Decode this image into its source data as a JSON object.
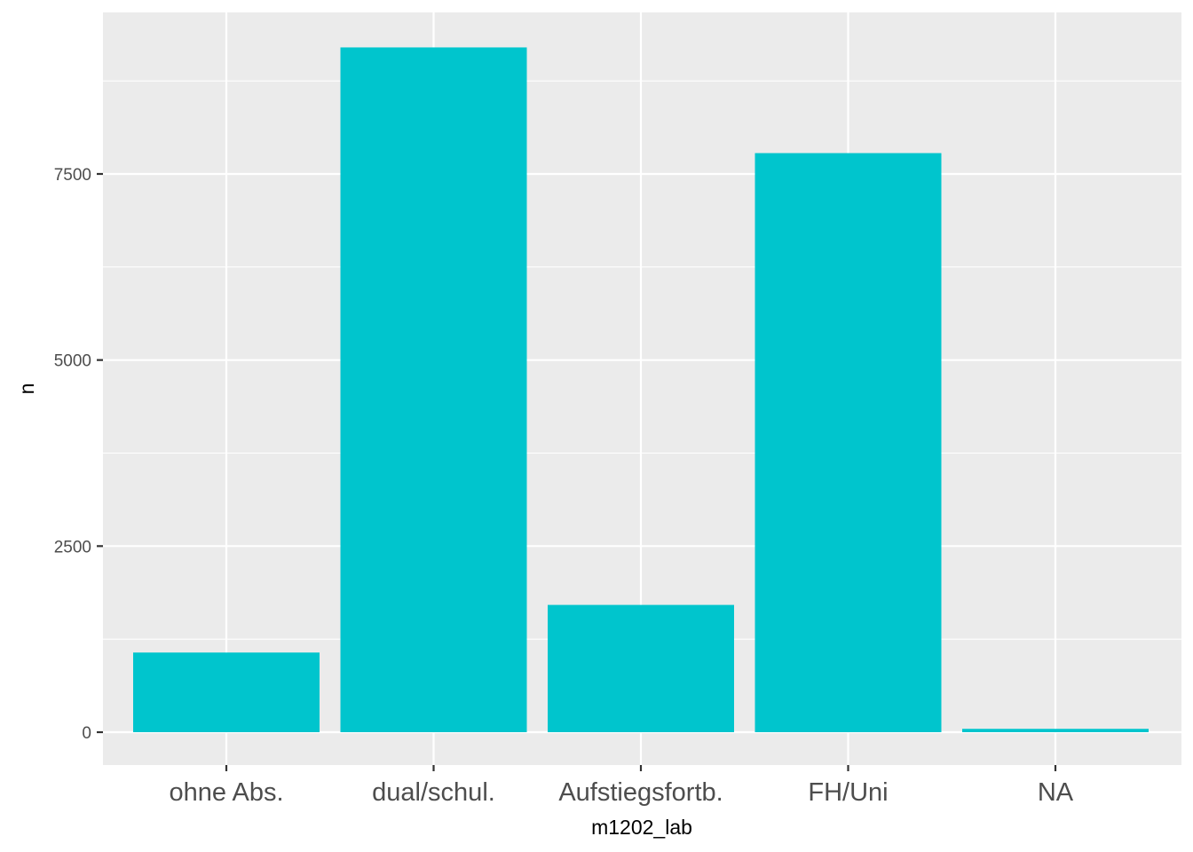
{
  "chart_data": {
    "type": "bar",
    "categories": [
      "ohne Abs.",
      "dual/schul.",
      "Aufstiegsfortb.",
      "FH/Uni",
      "NA"
    ],
    "values": [
      1070,
      9200,
      1710,
      7780,
      45
    ],
    "xlabel": "m1202_lab",
    "ylabel": "n",
    "ylim": [
      0,
      9650
    ],
    "yticks": [
      0,
      2500,
      5000,
      7500
    ],
    "ytick_labels": [
      "0",
      "2500",
      "5000",
      "7500"
    ],
    "grid": true,
    "colors": {
      "bar": "#00c5cd",
      "panel_background": "#ebebeb",
      "grid": "#ffffff"
    }
  }
}
